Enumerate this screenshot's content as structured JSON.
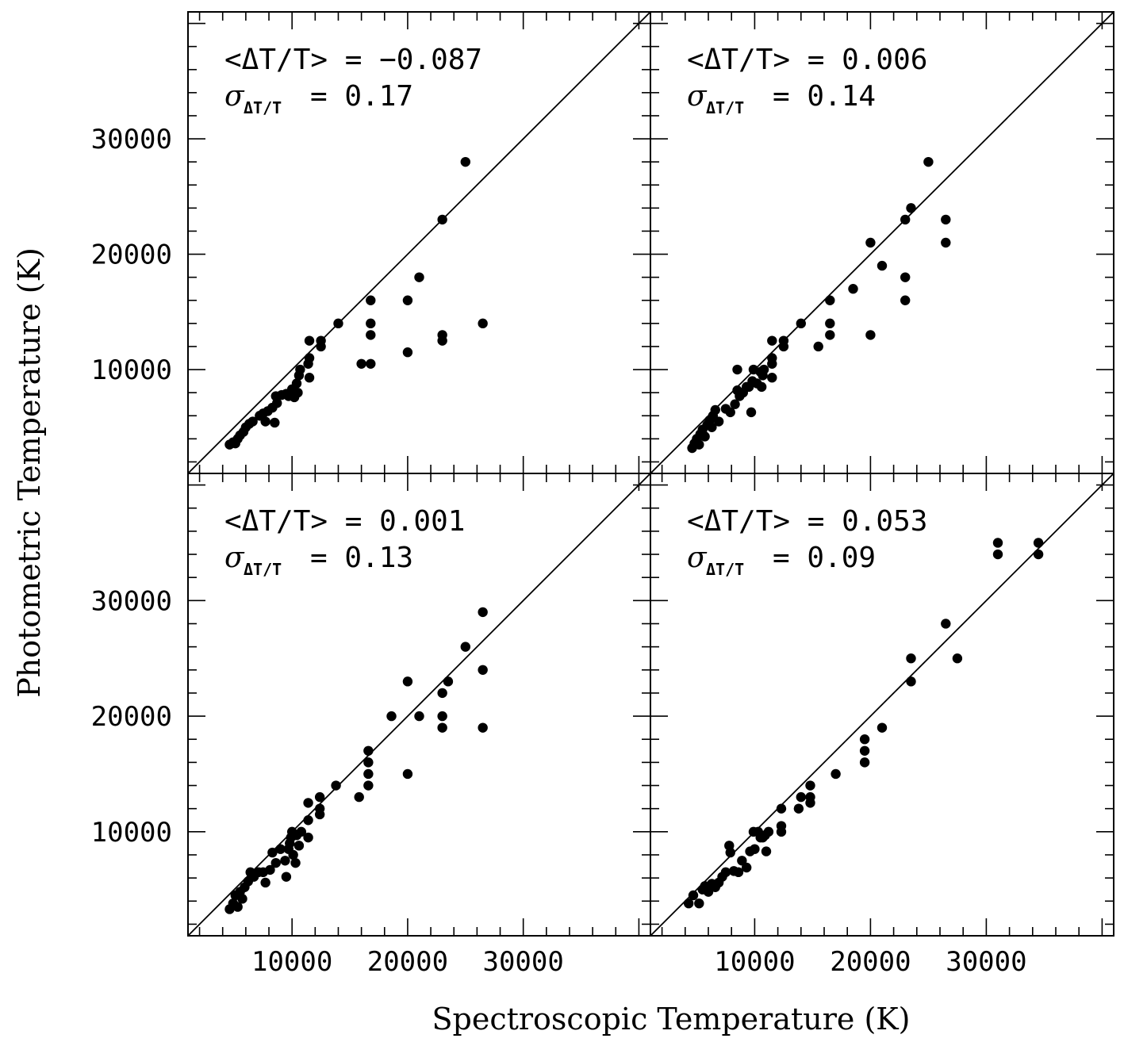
{
  "figure": {
    "xlabel": "Spectroscopic Temperature (K)",
    "ylabel": "Photometric Temperature (K)"
  },
  "chart_data": [
    {
      "type": "scatter",
      "stat_mean": "<ΔT/T> = −0.087",
      "stat_sigma_symbol": "σ",
      "stat_sigma_sub": "ΔT/T",
      "stat_sigma_value": "= 0.17",
      "xlim": [
        1000,
        41000
      ],
      "ylim": [
        1000,
        41000
      ],
      "xticks": [
        10000,
        20000,
        30000
      ],
      "yticks": [
        10000,
        20000,
        30000
      ],
      "show_xtick_labels": false,
      "show_ytick_labels": true,
      "reference_line": "y = x",
      "points": [
        [
          4600,
          3500
        ],
        [
          4900,
          3700
        ],
        [
          5100,
          3600
        ],
        [
          5300,
          4000
        ],
        [
          5500,
          4300
        ],
        [
          5800,
          4600
        ],
        [
          6000,
          5000
        ],
        [
          6300,
          5300
        ],
        [
          6600,
          5500
        ],
        [
          7200,
          6000
        ],
        [
          7500,
          6200
        ],
        [
          7700,
          5500
        ],
        [
          7900,
          6400
        ],
        [
          8300,
          6700
        ],
        [
          8500,
          5400
        ],
        [
          8700,
          7100
        ],
        [
          8600,
          7700
        ],
        [
          9100,
          7800
        ],
        [
          9500,
          7900
        ],
        [
          9700,
          7700
        ],
        [
          10000,
          8300
        ],
        [
          10200,
          7600
        ],
        [
          10400,
          8800
        ],
        [
          10500,
          8000
        ],
        [
          10600,
          9500
        ],
        [
          10700,
          10000
        ],
        [
          11500,
          9300
        ],
        [
          11400,
          10500
        ],
        [
          11500,
          11000
        ],
        [
          11500,
          12500
        ],
        [
          12500,
          12000
        ],
        [
          12500,
          12500
        ],
        [
          14000,
          14000
        ],
        [
          16000,
          10500
        ],
        [
          16800,
          10500
        ],
        [
          16800,
          13000
        ],
        [
          16800,
          14000
        ],
        [
          16800,
          16000
        ],
        [
          20000,
          11500
        ],
        [
          20000,
          16000
        ],
        [
          21000,
          18000
        ],
        [
          23000,
          12500
        ],
        [
          23000,
          13000
        ],
        [
          23000,
          23000
        ],
        [
          25000,
          28000
        ],
        [
          26500,
          14000
        ]
      ]
    },
    {
      "type": "scatter",
      "stat_mean": "<ΔT/T> = 0.006",
      "stat_sigma_symbol": "σ",
      "stat_sigma_sub": "ΔT/T",
      "stat_sigma_value": "= 0.14",
      "xlim": [
        1000,
        41000
      ],
      "ylim": [
        1000,
        41000
      ],
      "xticks": [
        10000,
        20000,
        30000
      ],
      "yticks": [
        10000,
        20000,
        30000
      ],
      "show_xtick_labels": false,
      "show_ytick_labels": false,
      "reference_line": "y = x",
      "points": [
        [
          4600,
          3200
        ],
        [
          4800,
          3600
        ],
        [
          5000,
          4000
        ],
        [
          5200,
          3500
        ],
        [
          5300,
          4400
        ],
        [
          5500,
          4800
        ],
        [
          5700,
          4200
        ],
        [
          5900,
          5200
        ],
        [
          6100,
          5600
        ],
        [
          6300,
          5000
        ],
        [
          6400,
          6000
        ],
        [
          6600,
          6500
        ],
        [
          6900,
          5500
        ],
        [
          7500,
          6600
        ],
        [
          7900,
          6300
        ],
        [
          8300,
          7000
        ],
        [
          8500,
          8200
        ],
        [
          8700,
          7700
        ],
        [
          8500,
          10000
        ],
        [
          9000,
          8000
        ],
        [
          9300,
          8500
        ],
        [
          9500,
          8500
        ],
        [
          9700,
          6300
        ],
        [
          9800,
          9000
        ],
        [
          9900,
          10000
        ],
        [
          10200,
          8800
        ],
        [
          10500,
          9800
        ],
        [
          10600,
          8500
        ],
        [
          10700,
          9500
        ],
        [
          10800,
          10000
        ],
        [
          11500,
          9300
        ],
        [
          11500,
          10500
        ],
        [
          11500,
          11000
        ],
        [
          11500,
          12500
        ],
        [
          12500,
          12000
        ],
        [
          12500,
          12500
        ],
        [
          14000,
          14000
        ],
        [
          15500,
          12000
        ],
        [
          16500,
          13000
        ],
        [
          16500,
          14000
        ],
        [
          16500,
          16000
        ],
        [
          18500,
          17000
        ],
        [
          20000,
          13000
        ],
        [
          20000,
          21000
        ],
        [
          21000,
          19000
        ],
        [
          23000,
          16000
        ],
        [
          23000,
          18000
        ],
        [
          23000,
          23000
        ],
        [
          23500,
          24000
        ],
        [
          25000,
          28000
        ],
        [
          26500,
          21000
        ],
        [
          26500,
          23000
        ]
      ]
    },
    {
      "type": "scatter",
      "stat_mean": "<ΔT/T> = 0.001",
      "stat_sigma_symbol": "σ",
      "stat_sigma_sub": "ΔT/T",
      "stat_sigma_value": "= 0.13",
      "xlim": [
        1000,
        41000
      ],
      "ylim": [
        1000,
        41000
      ],
      "xticks": [
        10000,
        20000,
        30000
      ],
      "yticks": [
        10000,
        20000,
        30000
      ],
      "show_xtick_labels": true,
      "show_ytick_labels": true,
      "reference_line": "y = x",
      "points": [
        [
          4600,
          3300
        ],
        [
          4900,
          3800
        ],
        [
          5100,
          4500
        ],
        [
          5300,
          3500
        ],
        [
          5500,
          4800
        ],
        [
          5700,
          4200
        ],
        [
          5900,
          5200
        ],
        [
          6200,
          5700
        ],
        [
          6400,
          6500
        ],
        [
          6700,
          6100
        ],
        [
          7100,
          6500
        ],
        [
          7500,
          6500
        ],
        [
          7700,
          5600
        ],
        [
          8100,
          6700
        ],
        [
          8300,
          8200
        ],
        [
          8600,
          7300
        ],
        [
          9000,
          8500
        ],
        [
          9400,
          7500
        ],
        [
          9500,
          6100
        ],
        [
          9700,
          8500
        ],
        [
          9800,
          9000
        ],
        [
          9900,
          9500
        ],
        [
          10000,
          10000
        ],
        [
          10100,
          8000
        ],
        [
          10300,
          7300
        ],
        [
          10400,
          9700
        ],
        [
          10600,
          8800
        ],
        [
          10800,
          10000
        ],
        [
          11400,
          9500
        ],
        [
          11400,
          11000
        ],
        [
          11400,
          12500
        ],
        [
          12400,
          11500
        ],
        [
          12400,
          12000
        ],
        [
          12400,
          13000
        ],
        [
          13800,
          14000
        ],
        [
          15800,
          13000
        ],
        [
          16600,
          14000
        ],
        [
          16600,
          15000
        ],
        [
          16600,
          16000
        ],
        [
          16600,
          17000
        ],
        [
          18600,
          20000
        ],
        [
          20000,
          15000
        ],
        [
          20000,
          23000
        ],
        [
          21000,
          20000
        ],
        [
          23000,
          19000
        ],
        [
          23000,
          20000
        ],
        [
          23000,
          22000
        ],
        [
          23500,
          23000
        ],
        [
          25000,
          26000
        ],
        [
          26500,
          19000
        ],
        [
          26500,
          24000
        ],
        [
          26500,
          29000
        ]
      ]
    },
    {
      "type": "scatter",
      "stat_mean": "<ΔT/T> = 0.053",
      "stat_sigma_symbol": "σ",
      "stat_sigma_sub": "ΔT/T",
      "stat_sigma_value": "= 0.09",
      "xlim": [
        1000,
        41000
      ],
      "ylim": [
        1000,
        41000
      ],
      "xticks": [
        10000,
        20000,
        30000
      ],
      "yticks": [
        10000,
        20000,
        30000
      ],
      "show_xtick_labels": true,
      "show_ytick_labels": false,
      "reference_line": "y = x",
      "points": [
        [
          4300,
          3800
        ],
        [
          4700,
          4500
        ],
        [
          5200,
          3800
        ],
        [
          5500,
          5000
        ],
        [
          5700,
          5300
        ],
        [
          6000,
          4800
        ],
        [
          6300,
          5500
        ],
        [
          6600,
          5200
        ],
        [
          6900,
          5600
        ],
        [
          7200,
          6100
        ],
        [
          7500,
          6500
        ],
        [
          7800,
          8800
        ],
        [
          7900,
          8200
        ],
        [
          8200,
          6600
        ],
        [
          8600,
          6500
        ],
        [
          8900,
          7500
        ],
        [
          9300,
          6900
        ],
        [
          9600,
          8300
        ],
        [
          9900,
          10000
        ],
        [
          10000,
          8500
        ],
        [
          10300,
          10000
        ],
        [
          10500,
          9500
        ],
        [
          10700,
          9500
        ],
        [
          10900,
          9700
        ],
        [
          11000,
          8300
        ],
        [
          11200,
          10000
        ],
        [
          12300,
          10000
        ],
        [
          12300,
          10500
        ],
        [
          12300,
          12000
        ],
        [
          13800,
          12000
        ],
        [
          14000,
          13000
        ],
        [
          14800,
          12500
        ],
        [
          14800,
          13000
        ],
        [
          14800,
          14000
        ],
        [
          17000,
          15000
        ],
        [
          19500,
          16000
        ],
        [
          19500,
          17000
        ],
        [
          19500,
          18000
        ],
        [
          21000,
          19000
        ],
        [
          23500,
          23000
        ],
        [
          23500,
          25000
        ],
        [
          26500,
          28000
        ],
        [
          27500,
          25000
        ],
        [
          31000,
          34000
        ],
        [
          31000,
          35000
        ],
        [
          34500,
          34000
        ],
        [
          34500,
          35000
        ]
      ]
    }
  ]
}
